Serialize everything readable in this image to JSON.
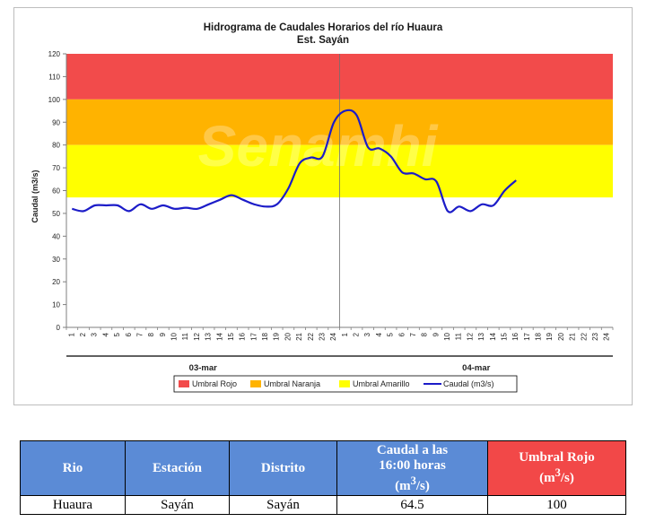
{
  "chart": {
    "title_line1": "Hidrograma de Caudales Horarios del río Huaura",
    "title_line2": "Est. Sayán",
    "watermark": "Senamhi"
  },
  "chart_data": {
    "type": "line",
    "title": "Hidrograma de Caudales Horarios del río Huaura",
    "subtitle": "Est. Sayán",
    "ylabel": "Caudal  (m3/s)",
    "ylim": [
      0,
      120
    ],
    "y_ticks": [
      0,
      10,
      20,
      30,
      40,
      50,
      60,
      70,
      80,
      90,
      100,
      110,
      120
    ],
    "x_day_labels": [
      "03-mar",
      "04-mar"
    ],
    "x_hour_labels": [
      "1",
      "2",
      "3",
      "4",
      "5",
      "6",
      "7",
      "8",
      "9",
      "10",
      "11",
      "12",
      "13",
      "14",
      "15",
      "16",
      "17",
      "18",
      "19",
      "20",
      "21",
      "22",
      "23",
      "24"
    ],
    "grid": false,
    "legend_position": "bottom",
    "thresholds": [
      {
        "name": "Umbral Rojo",
        "from": 100,
        "to": 120,
        "color": "#f24b4b"
      },
      {
        "name": "Umbral Naranja",
        "from": 80,
        "to": 100,
        "color": "#ffb300"
      },
      {
        "name": "Umbral Amarillo",
        "from": 57,
        "to": 80,
        "color": "#ffff00"
      }
    ],
    "series": [
      {
        "name": "Caudal (m3/s)",
        "color": "#1c1cc8",
        "x": [
          0,
          1,
          2,
          3,
          4,
          5,
          6,
          7,
          8,
          9,
          10,
          11,
          12,
          13,
          14,
          15,
          16,
          17,
          18,
          19,
          20,
          21,
          22,
          23,
          24,
          25,
          26,
          27,
          28,
          29,
          30,
          31,
          32,
          33,
          34,
          35,
          36,
          37,
          38,
          39,
          40
        ],
        "values": [
          52,
          51,
          53.5,
          53.5,
          53.5,
          51,
          54,
          52,
          53.5,
          52,
          52.5,
          52,
          54,
          56,
          58,
          56,
          54,
          53,
          54,
          61,
          72,
          74.5,
          75,
          90,
          95,
          93,
          79,
          78.5,
          75,
          68,
          67.5,
          65,
          64,
          51,
          53,
          51,
          54,
          53.5,
          60,
          64.5,
          null
        ]
      }
    ]
  },
  "legend": {
    "red": "Umbral Rojo",
    "orange": "Umbral Naranja",
    "yellow": "Umbral Amarillo",
    "line": "Caudal (m3/s)"
  },
  "table": {
    "headers": {
      "rio": "Rio",
      "estacion": "Estación",
      "distrito": "Distrito",
      "caudal_a": "Caudal a las",
      "caudal_b": "16:00 horas",
      "caudal_unit_pre": "(m",
      "caudal_unit_sup": "3",
      "caudal_unit_post": "/s)",
      "umbral_a": "Umbral Rojo",
      "umbral_unit_pre": "(m",
      "umbral_unit_sup": "3",
      "umbral_unit_post": "/s)"
    },
    "row": {
      "rio": "Huaura",
      "estacion": "Sayán",
      "distrito": "Sayán",
      "caudal": "64.5",
      "umbral": "100"
    }
  }
}
